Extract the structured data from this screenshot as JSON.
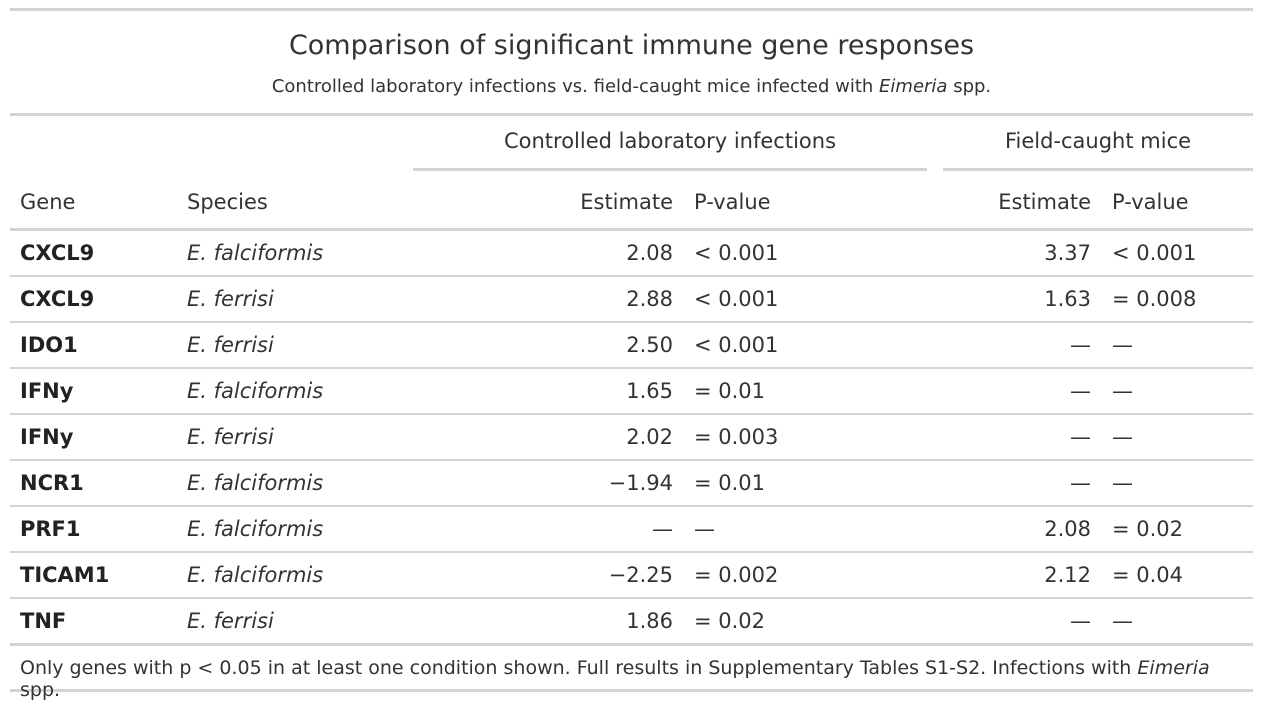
{
  "title": "Comparison of significant immune gene responses",
  "subtitle": {
    "pre": "Controlled laboratory infections vs. field-caught mice infected with ",
    "italic": "Eimeria",
    "post": " spp."
  },
  "spanners": {
    "lab": "Controlled laboratory infections",
    "field": "Field-caught mice"
  },
  "columns": {
    "gene": "Gene",
    "species": "Species",
    "lab_estimate": "Estimate",
    "lab_pvalue": "P-value",
    "field_estimate": "Estimate",
    "field_pvalue": "P-value"
  },
  "rows": [
    {
      "gene": "CXCL9",
      "species": "E. falciformis",
      "lab_est": "2.08",
      "lab_p": "< 0.001",
      "field_est": "3.37",
      "field_p": "< 0.001"
    },
    {
      "gene": "CXCL9",
      "species": "E. ferrisi",
      "lab_est": "2.88",
      "lab_p": "< 0.001",
      "field_est": "1.63",
      "field_p": "= 0.008"
    },
    {
      "gene": "IDO1",
      "species": "E. ferrisi",
      "lab_est": "2.50",
      "lab_p": "< 0.001",
      "field_est": "—",
      "field_p": "—"
    },
    {
      "gene": "IFNy",
      "species": "E. falciformis",
      "lab_est": "1.65",
      "lab_p": "= 0.01",
      "field_est": "—",
      "field_p": "—"
    },
    {
      "gene": "IFNy",
      "species": "E. ferrisi",
      "lab_est": "2.02",
      "lab_p": "= 0.003",
      "field_est": "—",
      "field_p": "—"
    },
    {
      "gene": "NCR1",
      "species": "E. falciformis",
      "lab_est": "−1.94",
      "lab_p": "= 0.01",
      "field_est": "—",
      "field_p": "—"
    },
    {
      "gene": "PRF1",
      "species": "E. falciformis",
      "lab_est": "—",
      "lab_p": "—",
      "field_est": "2.08",
      "field_p": "= 0.02"
    },
    {
      "gene": "TICAM1",
      "species": "E. falciformis",
      "lab_est": "−2.25",
      "lab_p": "= 0.002",
      "field_est": "2.12",
      "field_p": "= 0.04"
    },
    {
      "gene": "TNF",
      "species": "E. ferrisi",
      "lab_est": "1.86",
      "lab_p": "= 0.02",
      "field_est": "—",
      "field_p": "—"
    }
  ],
  "footnote": {
    "pre": "Only genes with p < 0.05 in at least one condition shown. Full results in Supplementary Tables S1-S2. Infections with ",
    "italic": "Eimeria",
    "post": " spp."
  },
  "colors": {
    "rule": "#d3d3d3",
    "text": "#333333"
  }
}
